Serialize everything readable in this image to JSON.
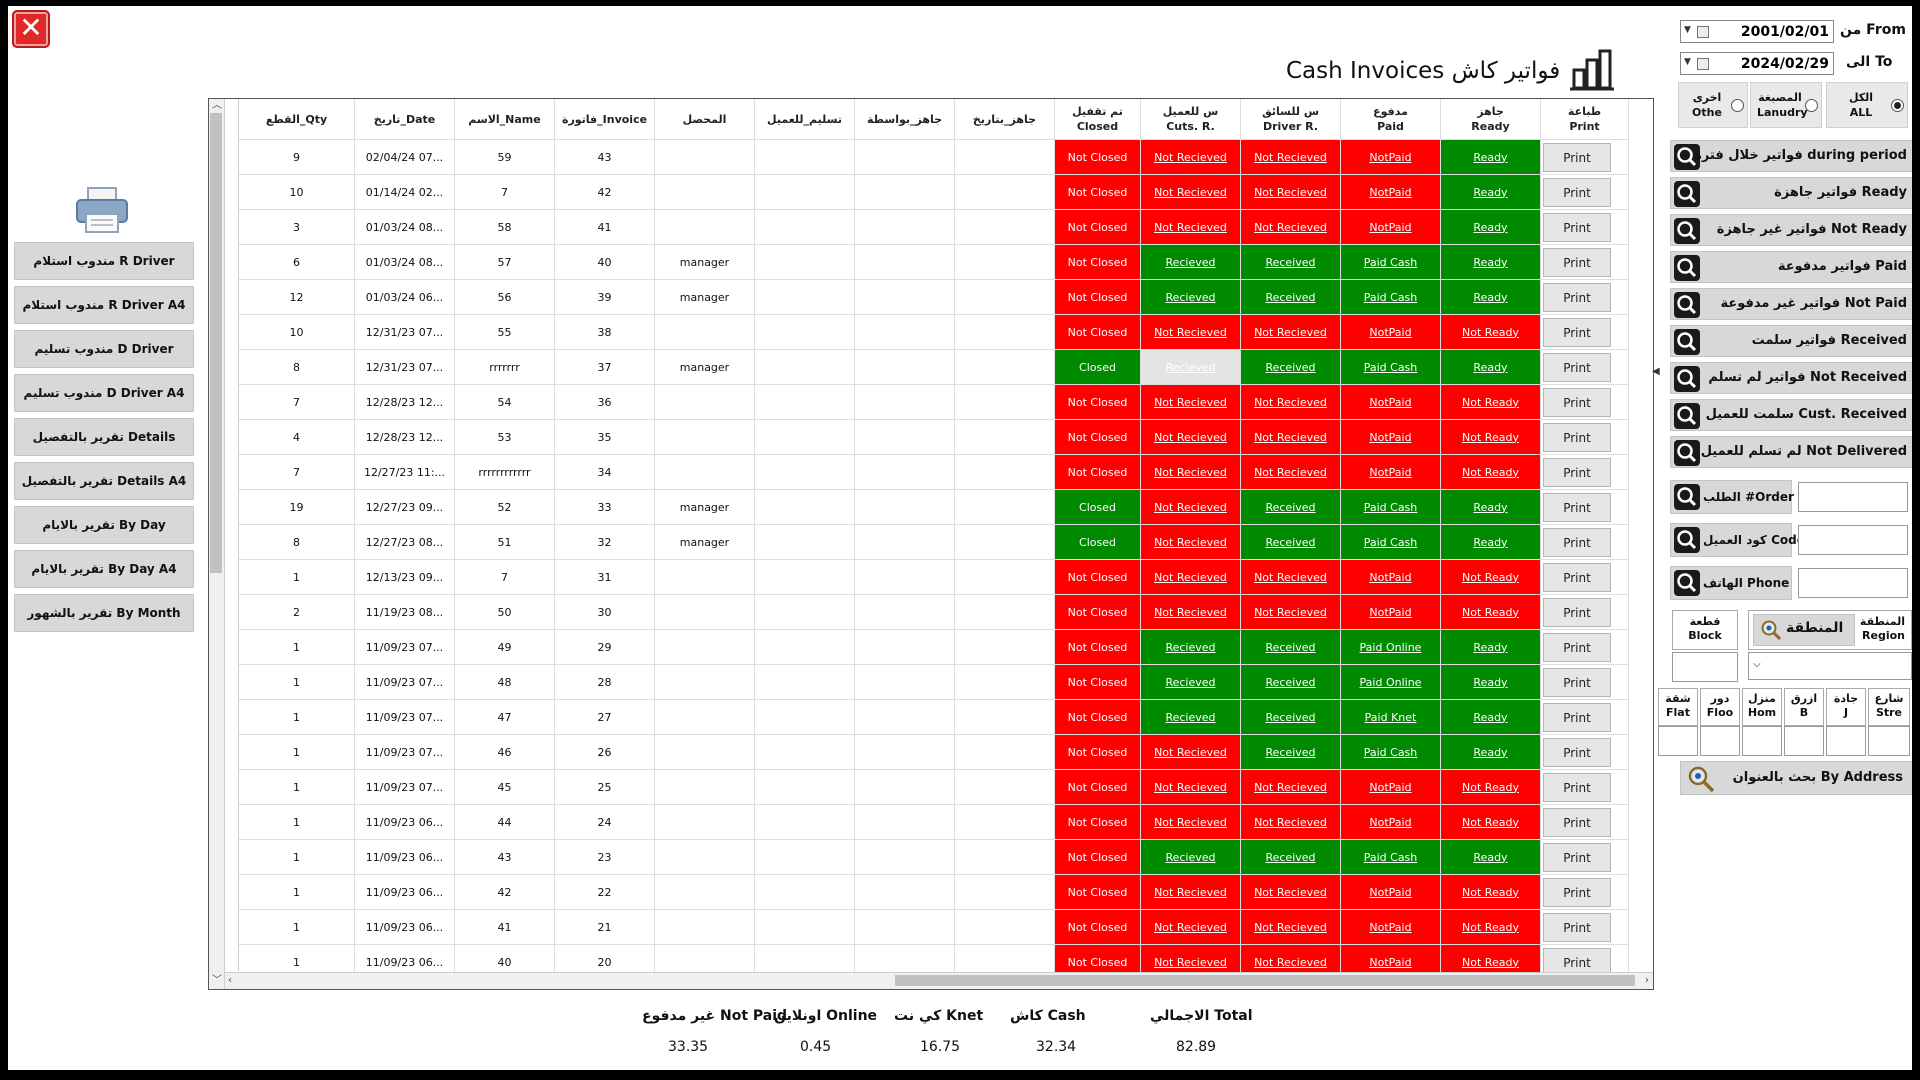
{
  "window": {
    "title": "Cash Invoices فواتير كاش"
  },
  "close_label": "✕",
  "left_buttons": [
    "مندوب استلام  R Driver",
    "مندوب استلام R Driver A4",
    "مندوب تسليم  D Driver",
    "مندوب تسليم D Driver A4",
    "تقرير بالتفصيل  Details",
    "تقرير بالتفصيل  Details A4",
    "تقرير بالايام  By Day",
    "تقرير بالايام  By Day A4",
    "تقرير بالشهور  By Month"
  ],
  "grid": {
    "headers": {
      "print": [
        "طباعة",
        "Print"
      ],
      "ready": [
        "جاهز",
        "Ready"
      ],
      "paid": [
        "مدفوع",
        "Paid"
      ],
      "driver_r": [
        "س للسائق",
        "Driver R."
      ],
      "cust_r": [
        "س للعميل",
        "Cuts. R."
      ],
      "closed": [
        "تم تقفيل",
        "Closed"
      ],
      "ready_date": [
        "جاهز_بتاريخ",
        ""
      ],
      "ready_by": [
        "جاهز_بواسطة",
        ""
      ],
      "delivered_to": [
        "تسليم_للعميل",
        ""
      ],
      "collector": [
        "المحصل",
        ""
      ],
      "invoice": [
        "فاتورة_Invoice",
        ""
      ],
      "name": [
        "الاسم_Name",
        ""
      ],
      "date": [
        "تاريخ_Date",
        ""
      ],
      "qty": [
        "القطع_Qty",
        ""
      ]
    },
    "print_label": "Print",
    "rows": [
      {
        "print": "Print",
        "ready": "Ready",
        "paid": "NotPaid",
        "driver_r": "Not Recieved",
        "cust_r": "Not Recieved",
        "closed": "Not Closed",
        "collector": "",
        "invoice": "43",
        "name": "59",
        "date": "02/04/24 07...",
        "qty": "9"
      },
      {
        "print": "Print",
        "ready": "Ready",
        "paid": "NotPaid",
        "driver_r": "Not Recieved",
        "cust_r": "Not Recieved",
        "closed": "Not Closed",
        "collector": "",
        "invoice": "42",
        "name": "7",
        "date": "01/14/24 02...",
        "qty": "10"
      },
      {
        "print": "Print",
        "ready": "Ready",
        "paid": "NotPaid",
        "driver_r": "Not Recieved",
        "cust_r": "Not Recieved",
        "closed": "Not Closed",
        "collector": "",
        "invoice": "41",
        "name": "58",
        "date": "01/03/24 08...",
        "qty": "3"
      },
      {
        "print": "Print",
        "ready": "Ready",
        "paid": "Paid Cash",
        "driver_r": "Received",
        "cust_r": "Recieved",
        "closed": "Not Closed",
        "collector": "manager",
        "invoice": "40",
        "name": "57",
        "date": "01/03/24 08...",
        "qty": "6"
      },
      {
        "print": "Print",
        "ready": "Ready",
        "paid": "Paid Cash",
        "driver_r": "Received",
        "cust_r": "Recieved",
        "closed": "Not Closed",
        "collector": "manager",
        "invoice": "39",
        "name": "56",
        "date": "01/03/24 06...",
        "qty": "12"
      },
      {
        "print": "Print",
        "ready": "Not Ready",
        "paid": "NotPaid",
        "driver_r": "Not Recieved",
        "cust_r": "Not Recieved",
        "closed": "Not Closed",
        "collector": "",
        "invoice": "38",
        "name": "55",
        "date": "12/31/23 07...",
        "qty": "10"
      },
      {
        "print": "Print",
        "ready": "Ready",
        "paid": "Paid Cash",
        "driver_r": "Received",
        "cust_r": "Recieved",
        "closed": "Closed",
        "collector": "manager",
        "invoice": "37",
        "name": "rrrrrrr",
        "date": "12/31/23 07...",
        "qty": "8"
      },
      {
        "print": "Print",
        "ready": "Not Ready",
        "paid": "NotPaid",
        "driver_r": "Not Recieved",
        "cust_r": "Not Recieved",
        "closed": "Not Closed",
        "collector": "",
        "invoice": "36",
        "name": "54",
        "date": "12/28/23 12...",
        "qty": "7"
      },
      {
        "print": "Print",
        "ready": "Not Ready",
        "paid": "NotPaid",
        "driver_r": "Not Recieved",
        "cust_r": "Not Recieved",
        "closed": "Not Closed",
        "collector": "",
        "invoice": "35",
        "name": "53",
        "date": "12/28/23 12...",
        "qty": "4"
      },
      {
        "print": "Print",
        "ready": "Not Ready",
        "paid": "NotPaid",
        "driver_r": "Not Recieved",
        "cust_r": "Not Recieved",
        "closed": "Not Closed",
        "collector": "",
        "invoice": "34",
        "name": "rrrrrrrrrrrr",
        "date": "12/27/23 11:...",
        "qty": "7"
      },
      {
        "print": "Print",
        "ready": "Ready",
        "paid": "Paid Cash",
        "driver_r": "Received",
        "cust_r": "Not Recieved",
        "closed": "Closed",
        "collector": "manager",
        "invoice": "33",
        "name": "52",
        "date": "12/27/23 09...",
        "qty": "19"
      },
      {
        "print": "Print",
        "ready": "Ready",
        "paid": "Paid Cash",
        "driver_r": "Received",
        "cust_r": "Not Recieved",
        "closed": "Closed",
        "collector": "manager",
        "invoice": "32",
        "name": "51",
        "date": "12/27/23 08...",
        "qty": "8"
      },
      {
        "print": "Print",
        "ready": "Not Ready",
        "paid": "NotPaid",
        "driver_r": "Not Recieved",
        "cust_r": "Not Recieved",
        "closed": "Not Closed",
        "collector": "",
        "invoice": "31",
        "name": "7",
        "date": "12/13/23 09...",
        "qty": "1"
      },
      {
        "print": "Print",
        "ready": "Not Ready",
        "paid": "NotPaid",
        "driver_r": "Not Recieved",
        "cust_r": "Not Recieved",
        "closed": "Not Closed",
        "collector": "",
        "invoice": "30",
        "name": "50",
        "date": "11/19/23 08...",
        "qty": "2"
      },
      {
        "print": "Print",
        "ready": "Ready",
        "paid": "Paid Online",
        "driver_r": "Received",
        "cust_r": "Recieved",
        "closed": "Not Closed",
        "collector": "",
        "invoice": "29",
        "name": "49",
        "date": "11/09/23 07...",
        "qty": "1"
      },
      {
        "print": "Print",
        "ready": "Ready",
        "paid": "Paid Online",
        "driver_r": "Received",
        "cust_r": "Recieved",
        "closed": "Not Closed",
        "collector": "",
        "invoice": "28",
        "name": "48",
        "date": "11/09/23 07...",
        "qty": "1"
      },
      {
        "print": "Print",
        "ready": "Ready",
        "paid": "Paid Knet",
        "driver_r": "Received",
        "cust_r": "Recieved",
        "closed": "Not Closed",
        "collector": "",
        "invoice": "27",
        "name": "47",
        "date": "11/09/23 07...",
        "qty": "1"
      },
      {
        "print": "Print",
        "ready": "Ready",
        "paid": "Paid Cash",
        "driver_r": "Received",
        "cust_r": "Not Recieved",
        "closed": "Not Closed",
        "collector": "",
        "invoice": "26",
        "name": "46",
        "date": "11/09/23 07...",
        "qty": "1"
      },
      {
        "print": "Print",
        "ready": "Not Ready",
        "paid": "NotPaid",
        "driver_r": "Not Recieved",
        "cust_r": "Not Recieved",
        "closed": "Not Closed",
        "collector": "",
        "invoice": "25",
        "name": "45",
        "date": "11/09/23 07...",
        "qty": "1"
      },
      {
        "print": "Print",
        "ready": "Not Ready",
        "paid": "NotPaid",
        "driver_r": "Not Recieved",
        "cust_r": "Not Recieved",
        "closed": "Not Closed",
        "collector": "",
        "invoice": "24",
        "name": "44",
        "date": "11/09/23 06...",
        "qty": "1"
      },
      {
        "print": "Print",
        "ready": "Ready",
        "paid": "Paid Cash",
        "driver_r": "Received",
        "cust_r": "Recieved",
        "closed": "Not Closed",
        "collector": "",
        "invoice": "23",
        "name": "43",
        "date": "11/09/23 06...",
        "qty": "1"
      },
      {
        "print": "Print",
        "ready": "Not Ready",
        "paid": "NotPaid",
        "driver_r": "Not Recieved",
        "cust_r": "Not Recieved",
        "closed": "Not Closed",
        "collector": "",
        "invoice": "22",
        "name": "42",
        "date": "11/09/23 06...",
        "qty": "1"
      },
      {
        "print": "Print",
        "ready": "Not Ready",
        "paid": "NotPaid",
        "driver_r": "Not Recieved",
        "cust_r": "Not Recieved",
        "closed": "Not Closed",
        "collector": "",
        "invoice": "21",
        "name": "41",
        "date": "11/09/23 06...",
        "qty": "1"
      },
      {
        "print": "Print",
        "ready": "Not Ready",
        "paid": "NotPaid",
        "driver_r": "Not Recieved",
        "cust_r": "Not Recieved",
        "closed": "Not Closed",
        "collector": "",
        "invoice": "20",
        "name": "40",
        "date": "11/09/23 06...",
        "qty": "1"
      }
    ]
  },
  "totals": {
    "labels": [
      "الاجمالي Total",
      "كاش Cash",
      "كي نت Knet",
      "اونلاين Online",
      "غير مدفوع Not Paid"
    ],
    "values": [
      "82.89",
      "32.34",
      "16.75",
      "0.45",
      "33.35"
    ]
  },
  "dates": {
    "from_label": "من From",
    "from_value": "2001/02/01",
    "to_label": "الى To",
    "to_value": "2024/02/29"
  },
  "radios": [
    {
      "label1": "الكل",
      "label2": "ALL",
      "selected": true
    },
    {
      "label1": "المصبغة",
      "label2": "Lanudry",
      "selected": false
    },
    {
      "label1": "اخرى",
      "label2": "Othe",
      "selected": false
    }
  ],
  "filters": [
    "فواتير خلال فترة during period",
    "فواتير جاهزة Ready",
    "فواتير غير جاهزة Not Ready",
    "فواتير مدفوعة Paid",
    "فواتير غير مدفوعة Not Paid",
    "فواتير سلمت Received",
    "فواتير لم تسلم Not Received",
    "سلمت للعميل Cust. Received",
    "لم تسلم للعميل Not Delivered"
  ],
  "search_fields": [
    {
      "label": "الطلب #Order"
    },
    {
      "label": "كود العميل Code"
    },
    {
      "label": "الهاتف Phone"
    }
  ],
  "address": {
    "block_label1": "قطعة",
    "block_label2": "Block",
    "region_label1": "المنطقة",
    "region_label2": "Region",
    "region_btn": "المنطقة",
    "parts": [
      {
        "l1": "شارع",
        "l2": "Stre"
      },
      {
        "l1": "جادة",
        "l2": "J"
      },
      {
        "l1": "ازرق",
        "l2": "B"
      },
      {
        "l1": "منزل",
        "l2": "Hom"
      },
      {
        "l1": "دور",
        "l2": "Floo"
      },
      {
        "l1": "شقة",
        "l2": "Flat"
      }
    ],
    "search_btn": "بحث بالعنوان  By Address"
  },
  "colors": {
    "red": "#ff0000",
    "green": "#008a00",
    "gray": "#e4e4e4"
  }
}
